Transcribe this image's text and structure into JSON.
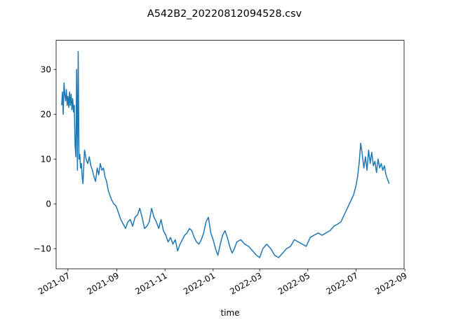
{
  "chart_data": {
    "type": "line",
    "title": "A542B2_20220812094528.csv",
    "xlabel": "time",
    "ylabel": "",
    "x_tick_labels": [
      "2021-07",
      "2021-09",
      "2021-11",
      "2022-01",
      "2022-03",
      "2022-05",
      "2022-07",
      "2022-09"
    ],
    "x_tick_values": [
      "2021-07-01",
      "2021-09-01",
      "2021-11-01",
      "2022-01-01",
      "2022-03-01",
      "2022-05-01",
      "2022-07-01",
      "2022-09-01"
    ],
    "y_ticks": [
      -10,
      0,
      10,
      20,
      30
    ],
    "xlim": [
      "2021-06-16",
      "2022-08-31"
    ],
    "ylim": [
      -14.5,
      36.5
    ],
    "grid": false,
    "line_color": "#1f77b4",
    "series": [
      {
        "x": [
          "2021-06-23",
          "2021-06-24",
          "2021-06-25",
          "2021-06-26",
          "2021-06-27",
          "2021-06-28",
          "2021-06-29",
          "2021-06-30",
          "2021-07-01",
          "2021-07-02",
          "2021-07-03",
          "2021-07-04",
          "2021-07-05",
          "2021-07-06",
          "2021-07-07",
          "2021-07-08",
          "2021-07-09",
          "2021-07-10",
          "2021-07-11",
          "2021-07-12",
          "2021-07-13",
          "2021-07-14",
          "2021-07-15",
          "2021-07-16",
          "2021-07-17",
          "2021-07-18",
          "2021-07-19",
          "2021-07-20",
          "2021-07-22",
          "2021-07-24",
          "2021-07-26",
          "2021-07-28",
          "2021-07-30",
          "2021-08-01",
          "2021-08-03",
          "2021-08-05",
          "2021-08-07",
          "2021-08-09",
          "2021-08-11",
          "2021-08-13",
          "2021-08-15",
          "2021-08-17",
          "2021-08-19",
          "2021-08-21",
          "2021-08-23",
          "2021-08-25",
          "2021-08-28",
          "2021-08-31",
          "2021-09-03",
          "2021-09-06",
          "2021-09-09",
          "2021-09-12",
          "2021-09-15",
          "2021-09-18",
          "2021-09-21",
          "2021-09-24",
          "2021-09-27",
          "2021-09-30",
          "2021-10-03",
          "2021-10-06",
          "2021-10-09",
          "2021-10-12",
          "2021-10-15",
          "2021-10-18",
          "2021-10-21",
          "2021-10-24",
          "2021-10-27",
          "2021-10-30",
          "2021-11-02",
          "2021-11-05",
          "2021-11-08",
          "2021-11-11",
          "2021-11-14",
          "2021-11-17",
          "2021-11-20",
          "2021-11-23",
          "2021-11-26",
          "2021-11-29",
          "2021-12-02",
          "2021-12-05",
          "2021-12-08",
          "2021-12-11",
          "2021-12-14",
          "2021-12-17",
          "2021-12-20",
          "2021-12-23",
          "2021-12-26",
          "2021-12-29",
          "2022-01-01",
          "2022-01-04",
          "2022-01-07",
          "2022-01-10",
          "2022-01-13",
          "2022-01-16",
          "2022-01-19",
          "2022-01-22",
          "2022-01-25",
          "2022-01-28",
          "2022-01-31",
          "2022-02-05",
          "2022-02-10",
          "2022-02-15",
          "2022-02-20",
          "2022-02-25",
          "2022-03-01",
          "2022-03-05",
          "2022-03-10",
          "2022-03-15",
          "2022-03-20",
          "2022-03-25",
          "2022-03-30",
          "2022-04-04",
          "2022-04-09",
          "2022-04-14",
          "2022-04-19",
          "2022-04-24",
          "2022-04-29",
          "2022-05-04",
          "2022-05-09",
          "2022-05-14",
          "2022-05-19",
          "2022-05-24",
          "2022-05-29",
          "2022-06-03",
          "2022-06-08",
          "2022-06-12",
          "2022-06-16",
          "2022-06-20",
          "2022-06-24",
          "2022-06-28",
          "2022-07-01",
          "2022-07-03",
          "2022-07-05",
          "2022-07-07",
          "2022-07-09",
          "2022-07-11",
          "2022-07-13",
          "2022-07-15",
          "2022-07-17",
          "2022-07-19",
          "2022-07-21",
          "2022-07-23",
          "2022-07-25",
          "2022-07-27",
          "2022-07-29",
          "2022-07-31",
          "2022-08-02",
          "2022-08-04",
          "2022-08-06",
          "2022-08-08",
          "2022-08-10",
          "2022-08-12"
        ],
        "values": [
          22.0,
          25.0,
          20.0,
          27.0,
          24.5,
          23.0,
          25.5,
          22.0,
          24.0,
          21.5,
          25.0,
          22.0,
          24.5,
          21.0,
          23.5,
          20.5,
          22.0,
          13.0,
          10.5,
          30.0,
          7.5,
          34.0,
          10.0,
          11.0,
          8.0,
          9.0,
          6.0,
          4.5,
          12.0,
          10.0,
          9.0,
          10.5,
          8.5,
          7.5,
          6.0,
          5.0,
          8.0,
          6.5,
          9.0,
          7.5,
          8.0,
          6.0,
          5.0,
          3.0,
          2.0,
          1.0,
          0.0,
          -0.5,
          -2.0,
          -3.5,
          -4.5,
          -5.5,
          -4.0,
          -3.5,
          -5.0,
          -3.0,
          -2.5,
          -1.0,
          -3.0,
          -5.5,
          -5.0,
          -4.0,
          -1.0,
          -3.0,
          -4.0,
          -5.5,
          -3.5,
          -6.0,
          -7.0,
          -8.5,
          -7.5,
          -9.0,
          -8.0,
          -10.5,
          -9.0,
          -8.0,
          -7.0,
          -6.5,
          -5.5,
          -6.0,
          -7.5,
          -8.5,
          -9.0,
          -8.0,
          -6.5,
          -4.0,
          -3.0,
          -6.5,
          -8.0,
          -10.0,
          -11.5,
          -9.0,
          -7.0,
          -6.0,
          -7.5,
          -9.5,
          -11.0,
          -10.0,
          -8.5,
          -8.0,
          -9.0,
          -9.5,
          -10.5,
          -11.5,
          -12.0,
          -10.0,
          -9.0,
          -10.0,
          -11.5,
          -12.0,
          -11.0,
          -10.0,
          -9.5,
          -8.0,
          -8.5,
          -9.0,
          -9.5,
          -7.5,
          -7.0,
          -6.5,
          -7.0,
          -6.5,
          -6.0,
          -5.0,
          -4.5,
          -4.0,
          -2.5,
          -1.0,
          0.5,
          2.0,
          4.0,
          6.0,
          9.0,
          13.5,
          11.0,
          8.0,
          10.5,
          7.5,
          12.0,
          9.0,
          11.5,
          8.5,
          9.5,
          7.0,
          10.0,
          8.0,
          9.0,
          7.5,
          8.5,
          6.5,
          5.5,
          4.5
        ]
      }
    ]
  }
}
